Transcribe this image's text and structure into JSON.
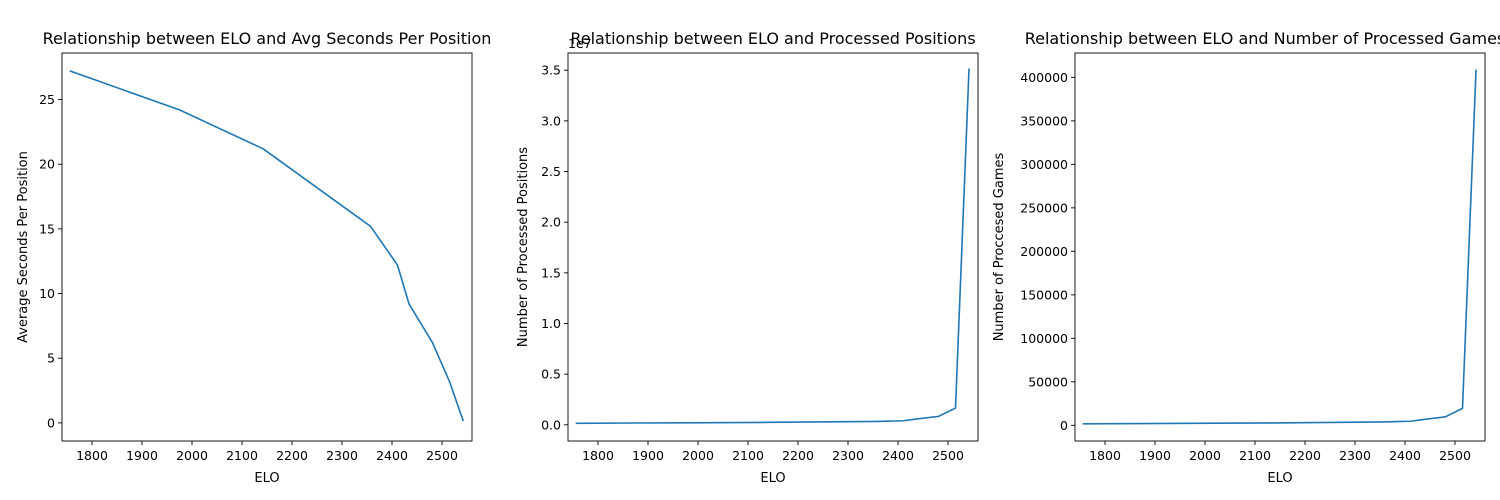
{
  "chart_data": [
    {
      "type": "line",
      "title": "Relationship between ELO and Avg Seconds Per Position",
      "xlabel": "ELO",
      "ylabel": "Average Seconds Per Position",
      "xlim": [
        1740,
        2560
      ],
      "ylim": [
        -1.4,
        28.6
      ],
      "xticks": [
        1800,
        1900,
        2000,
        2100,
        2200,
        2300,
        2400,
        2500
      ],
      "yticks": [
        0,
        5,
        10,
        15,
        20,
        25
      ],
      "ytick_labels": [
        "0",
        "5",
        "10",
        "15",
        "20",
        "25"
      ],
      "grid": false,
      "color": "#1f77b4",
      "series": [
        {
          "x": [
            1757,
            1975,
            2142,
            2357,
            2411,
            2434,
            2481,
            2515,
            2542
          ],
          "y": [
            27.2,
            24.2,
            21.2,
            15.2,
            12.2,
            9.2,
            6.2,
            3.2,
            0.2
          ]
        }
      ]
    },
    {
      "type": "line",
      "title": "Relationship between ELO and Processed Positions",
      "xlabel": "ELO",
      "ylabel": "Number of Processed Positions",
      "xlim": [
        1740,
        2560
      ],
      "ylim": [
        -1600000,
        36700000
      ],
      "xticks": [
        1800,
        1900,
        2000,
        2100,
        2200,
        2300,
        2400,
        2500
      ],
      "yticks": [
        0,
        5000000,
        10000000,
        15000000,
        20000000,
        25000000,
        30000000,
        35000000
      ],
      "ytick_labels": [
        "0.0",
        "0.5",
        "1.0",
        "1.5",
        "2.0",
        "2.5",
        "3.0",
        "3.5"
      ],
      "offset_label": "1e7",
      "grid": false,
      "color": "#1f77b4",
      "series": [
        {
          "x": [
            1757,
            1975,
            2142,
            2357,
            2411,
            2434,
            2481,
            2515,
            2542
          ],
          "y": [
            150000,
            200000,
            240000,
            330000,
            400000,
            550000,
            830000,
            1650000,
            35100000
          ]
        }
      ]
    },
    {
      "type": "line",
      "title": "Relationship between ELO and Number of Processed Games",
      "xlabel": "ELO",
      "ylabel": "Number of Proccesed Games",
      "xlim": [
        1740,
        2560
      ],
      "ylim": [
        -18000,
        428000
      ],
      "xticks": [
        1800,
        1900,
        2000,
        2100,
        2200,
        2300,
        2400,
        2500
      ],
      "yticks": [
        0,
        50000,
        100000,
        150000,
        200000,
        250000,
        300000,
        350000,
        400000
      ],
      "ytick_labels": [
        "0",
        "50000",
        "100000",
        "150000",
        "200000",
        "250000",
        "300000",
        "350000",
        "400000"
      ],
      "grid": false,
      "color": "#1f77b4",
      "series": [
        {
          "x": [
            1757,
            1975,
            2142,
            2357,
            2411,
            2434,
            2481,
            2515,
            2542
          ],
          "y": [
            1800,
            2300,
            2800,
            3900,
            4700,
            6500,
            9800,
            19500,
            408000
          ]
        }
      ]
    }
  ]
}
